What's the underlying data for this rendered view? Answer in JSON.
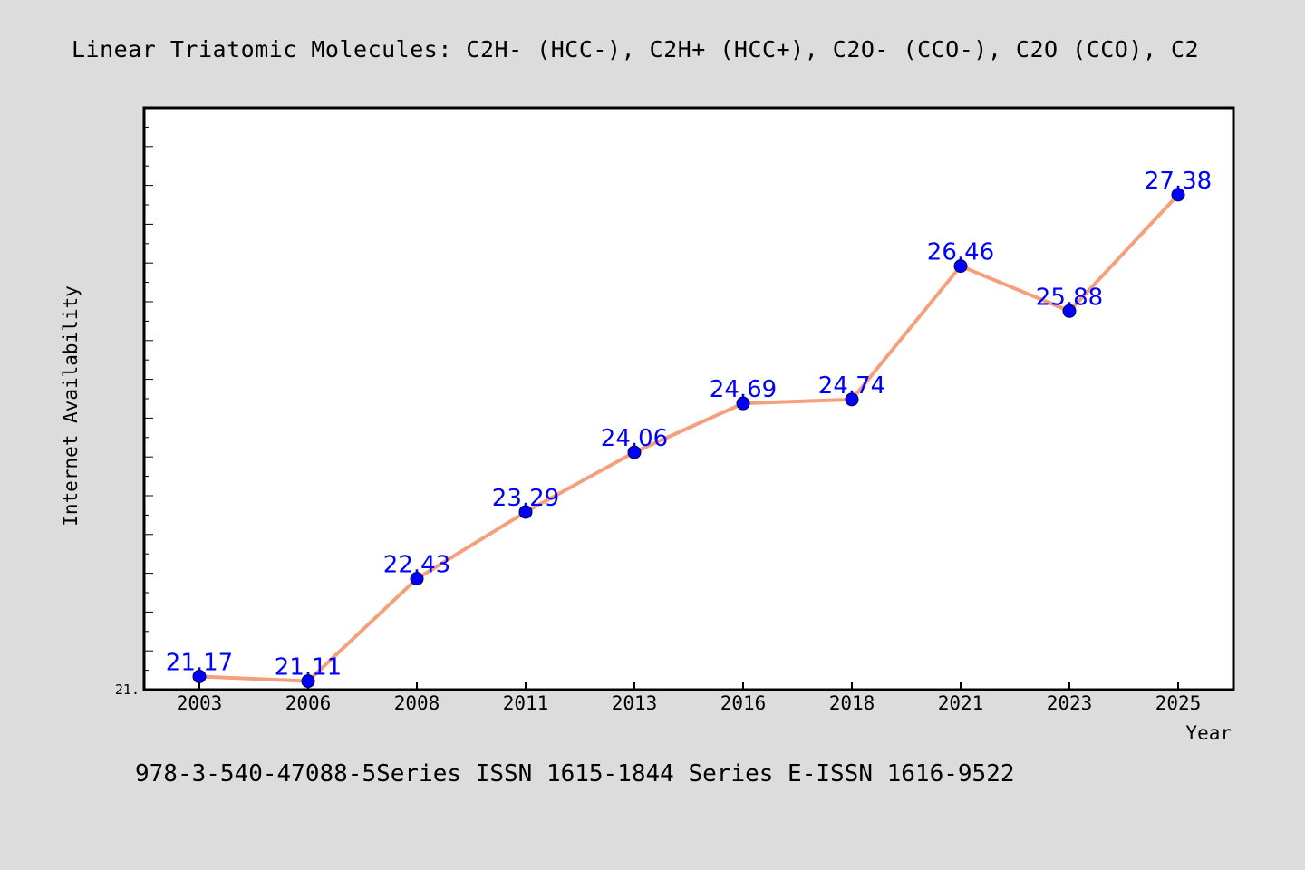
{
  "colors": {
    "background": "#dcdcdc",
    "plot_background": "#ffffff",
    "line": "#f4a07c",
    "marker": "#0000ff",
    "label": "#0000ff",
    "axis": "#000000"
  },
  "footer": "978-3-540-47088-5Series ISSN 1615-1844 Series E-ISSN 1616-9522",
  "chart_data": {
    "type": "line",
    "title": "Linear Triatomic Molecules: C2H- (HCC-), C2H+ (HCC+), C2O- (CCO-), C2O (CCO), C2",
    "xlabel": "Year",
    "ylabel": "Internet Availability",
    "categories": [
      "2003",
      "2006",
      "2008",
      "2011",
      "2013",
      "2016",
      "2018",
      "2021",
      "2023",
      "2025"
    ],
    "values": [
      21.17,
      21.11,
      22.43,
      23.29,
      24.06,
      24.69,
      24.74,
      26.46,
      25.88,
      27.38
    ],
    "data_labels": [
      "21.17",
      "21.11",
      "22.43",
      "23.29",
      "24.06",
      "24.69",
      "24.74",
      "26.46",
      "25.88",
      "27.38"
    ],
    "y_tick_label": "21.",
    "ylim": [
      21.0,
      28.5
    ],
    "grid": false,
    "legend": false
  }
}
